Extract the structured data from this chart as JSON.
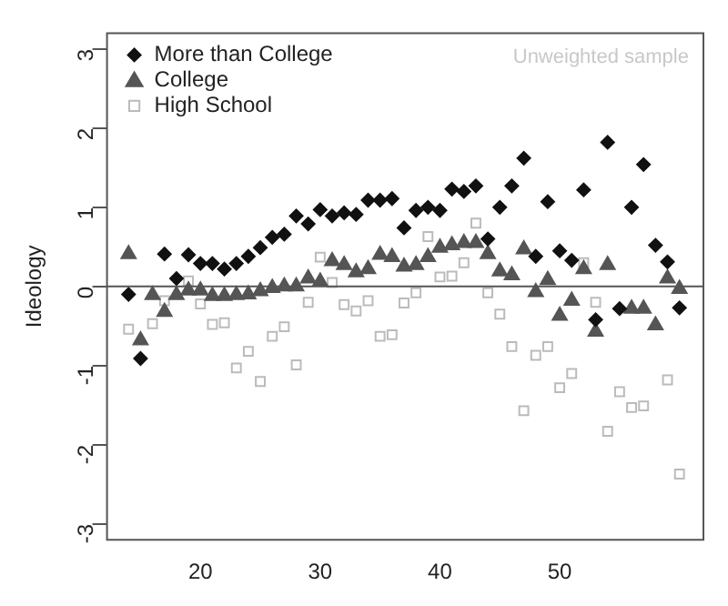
{
  "chart_data": {
    "type": "scatter",
    "ylabel": "Ideology",
    "legend": "top left",
    "grid": false,
    "annotations": [
      "Unweighted sample"
    ],
    "x": [
      14,
      15,
      16,
      17,
      18,
      19,
      20,
      21,
      22,
      23,
      24,
      25,
      26,
      27,
      28,
      29,
      30,
      31,
      32,
      33,
      34,
      35,
      36,
      37,
      38,
      39,
      40,
      41,
      42,
      43,
      44,
      45,
      46,
      47,
      48,
      49,
      50,
      51,
      52,
      53,
      54,
      55,
      56,
      57,
      58,
      59,
      60
    ],
    "xlim": [
      12.2,
      62
    ],
    "xticks": [
      20,
      30,
      40,
      50
    ],
    "ylim": [
      -3.2,
      3.2
    ],
    "yticks": [
      -3,
      -2,
      -1,
      0,
      1,
      2,
      3
    ],
    "ref_lines": [
      {
        "axis": "y",
        "value": 0,
        "color": "#555555"
      }
    ],
    "series": [
      {
        "name": "More than College",
        "color": "#111111",
        "marker": "diamond",
        "values": [
          -0.1,
          -0.91,
          null,
          0.41,
          0.1,
          0.4,
          0.29,
          0.29,
          0.22,
          0.29,
          0.38,
          0.49,
          0.62,
          0.66,
          0.89,
          0.79,
          0.97,
          0.89,
          0.93,
          0.91,
          1.09,
          1.09,
          1.11,
          0.74,
          0.96,
          1.0,
          0.96,
          1.23,
          1.2,
          1.27,
          0.6,
          1.0,
          1.27,
          1.62,
          0.38,
          1.07,
          0.45,
          0.33,
          1.22,
          -0.42,
          1.82,
          -0.28,
          1.0,
          1.54,
          0.52,
          0.31,
          -0.27
        ]
      },
      {
        "name": "College",
        "color": "#555555",
        "marker": "triangle",
        "values": [
          0.41,
          -0.68,
          -0.11,
          -0.32,
          -0.11,
          -0.05,
          -0.05,
          -0.12,
          -0.12,
          -0.11,
          -0.1,
          -0.06,
          -0.02,
          0,
          0,
          0.1,
          0.06,
          0.32,
          0.27,
          0.18,
          0.22,
          0.4,
          0.37,
          0.25,
          0.27,
          0.37,
          0.49,
          0.52,
          0.55,
          0.55,
          0.41,
          0.19,
          0.14,
          0.47,
          -0.07,
          0.08,
          -0.37,
          -0.18,
          0.22,
          -0.57,
          0.27,
          null,
          -0.28,
          -0.28,
          -0.49,
          0.1,
          -0.03
        ]
      },
      {
        "name": "High School",
        "color": "#bbbbbb",
        "marker": "square",
        "values": [
          -0.54,
          null,
          -0.47,
          -0.18,
          null,
          0.07,
          -0.22,
          -0.48,
          -0.46,
          -1.03,
          -0.82,
          -1.2,
          -0.63,
          -0.51,
          -0.99,
          -0.2,
          0.37,
          0.05,
          -0.23,
          -0.31,
          -0.18,
          -0.63,
          -0.61,
          -0.21,
          -0.08,
          0.63,
          0.12,
          0.13,
          0.3,
          0.8,
          -0.08,
          -0.35,
          -0.76,
          -1.57,
          -0.87,
          -0.76,
          -1.28,
          -1.1,
          0.3,
          -0.2,
          -1.83,
          -1.33,
          -1.53,
          -1.51,
          null,
          -1.18,
          -2.37
        ]
      }
    ]
  }
}
